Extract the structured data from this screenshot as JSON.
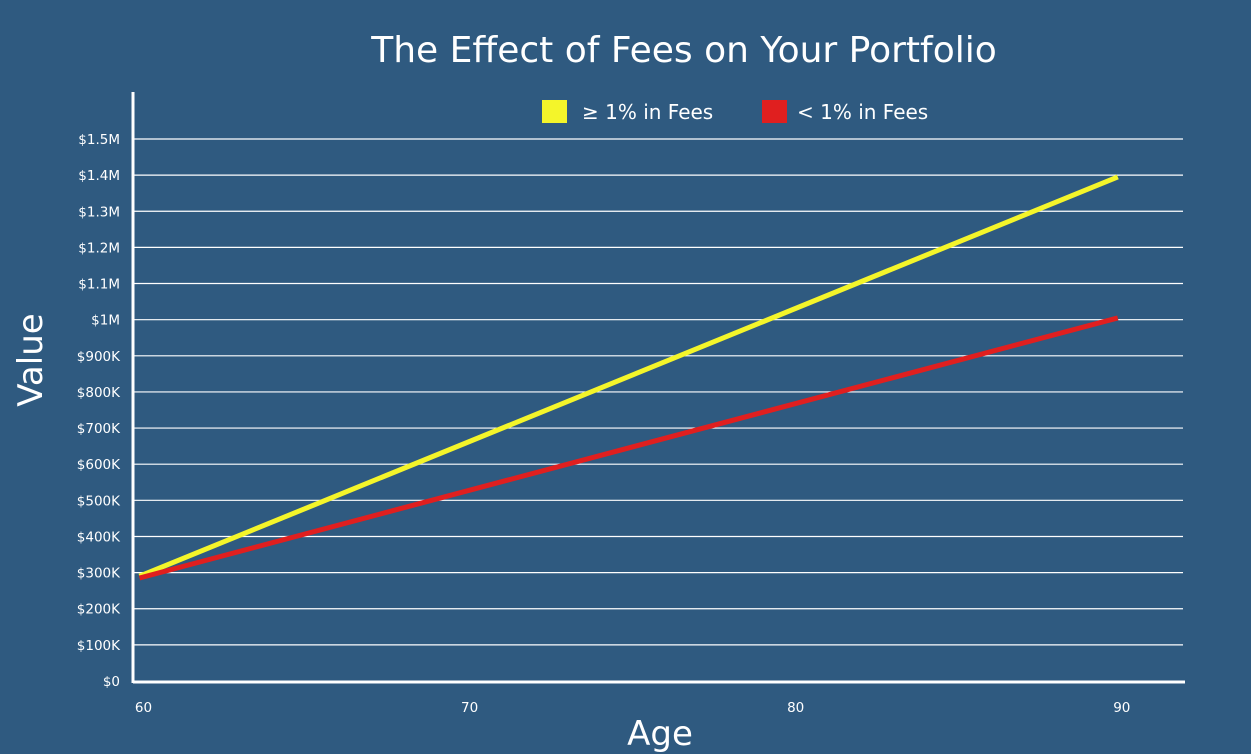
{
  "chart_data": {
    "type": "line",
    "title": "The Effect of Fees on Your Portfolio",
    "xlabel": "Age",
    "ylabel": "Value",
    "x_ticks": [
      {
        "value": 60,
        "label": "60"
      },
      {
        "value": 70,
        "label": "70"
      },
      {
        "value": 80,
        "label": "80"
      },
      {
        "value": 90,
        "label": "90"
      }
    ],
    "y_ticks": [
      {
        "value": 0,
        "label": "$0"
      },
      {
        "value": 100000,
        "label": "$100K"
      },
      {
        "value": 200000,
        "label": "$200K"
      },
      {
        "value": 300000,
        "label": "$300K"
      },
      {
        "value": 400000,
        "label": "$400K"
      },
      {
        "value": 500000,
        "label": "$500K"
      },
      {
        "value": 600000,
        "label": "$600K"
      },
      {
        "value": 700000,
        "label": "$700K"
      },
      {
        "value": 800000,
        "label": "$800K"
      },
      {
        "value": 900000,
        "label": "$900K"
      },
      {
        "value": 1000000,
        "label": "$1M"
      },
      {
        "value": 1100000,
        "label": "$1.1M"
      },
      {
        "value": 1200000,
        "label": "$1.2M"
      },
      {
        "value": 1300000,
        "label": "$1.3M"
      },
      {
        "value": 1400000,
        "label": "$1.4M"
      },
      {
        "value": 1500000,
        "label": "$1.5M"
      }
    ],
    "xlim": [
      59.8,
      92
    ],
    "ylim": [
      0,
      1500000
    ],
    "grid": true,
    "legend_position": "top",
    "series": [
      {
        "name": "≥ 1% in Fees",
        "color": "#f4f52a",
        "points": [
          {
            "x": 60,
            "y": 290000
          },
          {
            "x": 90,
            "y": 1395000
          }
        ]
      },
      {
        "name": "< 1% in Fees",
        "color": "#e01f1f",
        "points": [
          {
            "x": 60,
            "y": 285000
          },
          {
            "x": 90,
            "y": 1005000
          }
        ]
      }
    ]
  }
}
